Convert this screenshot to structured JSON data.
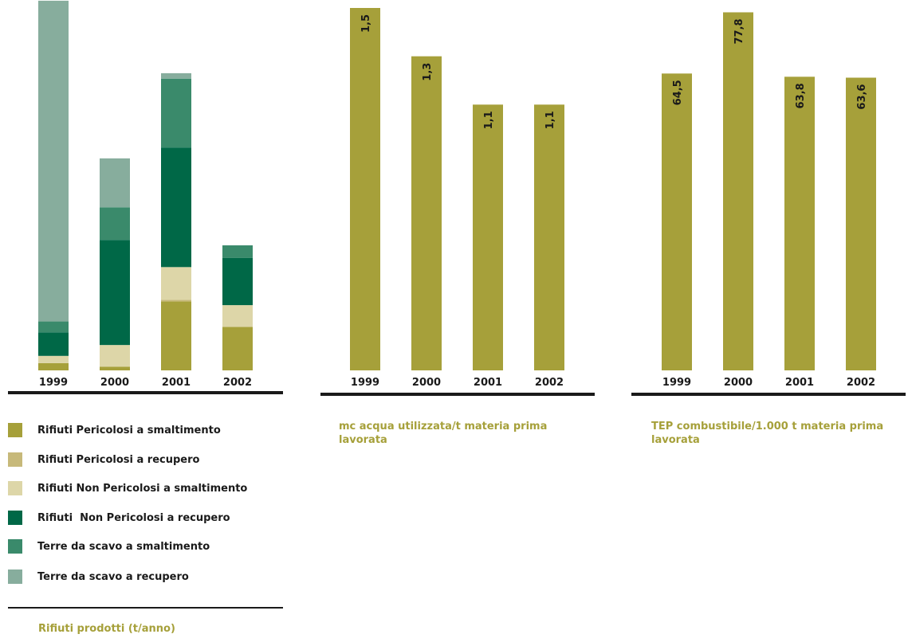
{
  "chart_data": [
    {
      "type": "bar",
      "stacked": true,
      "categories": [
        "1999",
        "2000",
        "2001",
        "2002"
      ],
      "ylim": [
        0,
        100
      ],
      "series": [
        {
          "name": "Rifiuti Pericolosi a smaltimento",
          "color": "#a6a03a",
          "values": [
            2,
            1,
            19,
            12
          ]
        },
        {
          "name": "Rifiuti Pericolosi a recupero",
          "color": "#c7b97a",
          "values": [
            0,
            0,
            0.5,
            0
          ]
        },
        {
          "name": "Rifiuti Non Pericolosi a smaltimento",
          "color": "#ddd6a8",
          "values": [
            2,
            6,
            9,
            6
          ]
        },
        {
          "name": "Rifiuti  Non Pericolosi a recupero",
          "color": "#006847",
          "values": [
            6.5,
            29,
            33,
            13
          ]
        },
        {
          "name": "Terre da scavo a smaltimento",
          "color": "#3a8a6b",
          "values": [
            3,
            9,
            19,
            3.5
          ]
        },
        {
          "name": "Terre da scavo a recupero",
          "color": "#87ad9d",
          "values": [
            88.5,
            13.5,
            1.5,
            0
          ]
        }
      ],
      "caption": "Rifiuti prodotti (t/anno)"
    },
    {
      "type": "bar",
      "categories": [
        "1999",
        "2000",
        "2001",
        "2002"
      ],
      "values": [
        1.5,
        1.3,
        1.1,
        1.1
      ],
      "data_labels": [
        "1,5",
        "1,3",
        "1,1",
        "1,1"
      ],
      "ylim": [
        0,
        1.5
      ],
      "color": "#a6a03a",
      "caption": "mc acqua utilizzata/t materia prima lavorata"
    },
    {
      "type": "bar",
      "categories": [
        "1999",
        "2000",
        "2001",
        "2002"
      ],
      "values": [
        64.5,
        77.8,
        63.8,
        63.6
      ],
      "data_labels": [
        "64,5",
        "77,8",
        "63,8",
        "63,6"
      ],
      "ylim": [
        0,
        78.4
      ],
      "color": "#a6a03a",
      "caption": "TEP combustibile/1.000 t materia prima lavorata"
    }
  ]
}
